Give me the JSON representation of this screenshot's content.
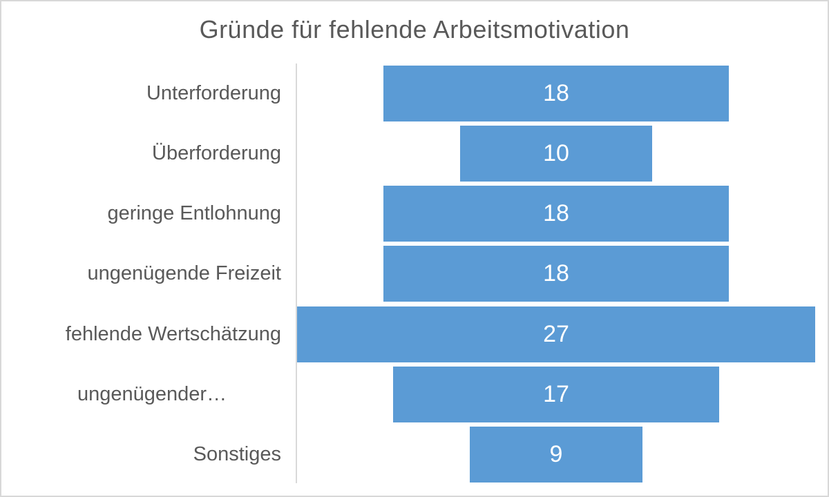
{
  "chart_data": {
    "type": "bar",
    "variant": "horizontal-centered-funnel",
    "title": "Gründe für fehlende Arbeitsmotivation",
    "categories": [
      "Unterforderung",
      "Überforderung",
      "geringe Entlohnung",
      "ungenügende Freizeit",
      "fehlende Wertschätzung",
      "ungenügender…",
      "Sonstiges"
    ],
    "values": [
      18,
      10,
      18,
      18,
      27,
      17,
      9
    ],
    "value_labels": [
      "18",
      "10",
      "18",
      "18",
      "27",
      "17",
      "9"
    ],
    "label_align": [
      "right",
      "right",
      "right",
      "right",
      "right",
      "left",
      "right"
    ],
    "xlim": [
      0,
      27
    ],
    "xlabel": "",
    "ylabel": "",
    "grid": "off",
    "legend": "none",
    "value_labels_position": "inside-center",
    "colors": {
      "bar": "#5b9bd5",
      "value_text": "#ffffff",
      "category_text": "#595959",
      "title_text": "#595959",
      "axis_line": "#d9d9d9",
      "frame_border": "#d8d8d8",
      "background": "#ffffff"
    }
  }
}
